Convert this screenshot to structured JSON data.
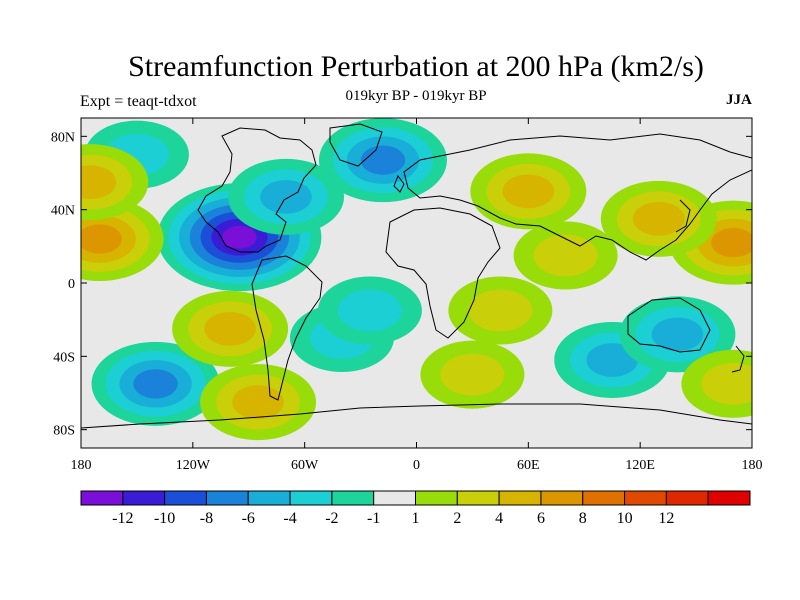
{
  "title": "Streamfunction Perturbation at 200 hPa (km2/s)",
  "subtitle": "019kyr BP - 019kyr BP",
  "expt_label": "Expt = teaqt-tdxot",
  "season": "JJA",
  "lat_ticks": [
    "80N",
    "40N",
    "0",
    "40S",
    "80S"
  ],
  "lon_ticks": [
    "180",
    "120W",
    "60W",
    "0",
    "60E",
    "120E",
    "180"
  ],
  "colorbar": {
    "colors": [
      "#7a10d8",
      "#3a1bd6",
      "#1c4fd8",
      "#1a82d8",
      "#19aed8",
      "#1ccfd4",
      "#1dd49a",
      "#e8e8e8",
      "#98dc0a",
      "#c9cf08",
      "#d6b400",
      "#dc9600",
      "#e07000",
      "#e04a00",
      "#e02800",
      "#e00000"
    ],
    "labels": [
      "-12",
      "-10",
      "-8",
      "-6",
      "-4",
      "-2",
      "-1",
      "1",
      "2",
      "4",
      "6",
      "8",
      "10",
      "12"
    ]
  },
  "chart_data": {
    "type": "heatmap",
    "title": "Streamfunction Perturbation at 200 hPa (km2/s)",
    "subtitle": "019kyr BP - 019kyr BP",
    "projection": "cylindrical equidistant",
    "xlim": [
      -180,
      180
    ],
    "ylim": [
      -90,
      90
    ],
    "contour_levels": [
      -12,
      -10,
      -8,
      -6,
      -4,
      -2,
      -1,
      1,
      2,
      4,
      6,
      8,
      10,
      12
    ],
    "features": [
      {
        "lon": -95,
        "lat": 25,
        "value": -12
      },
      {
        "lon": -70,
        "lat": 47,
        "value": -4
      },
      {
        "lon": -18,
        "lat": 67,
        "value": -6
      },
      {
        "lon": -150,
        "lat": 70,
        "value": -2
      },
      {
        "lon": -140,
        "lat": -55,
        "value": -6
      },
      {
        "lon": -40,
        "lat": -30,
        "value": -2
      },
      {
        "lon": 105,
        "lat": -42,
        "value": -4
      },
      {
        "lon": 140,
        "lat": -28,
        "value": -4
      },
      {
        "lon": -25,
        "lat": -15,
        "value": -2
      },
      {
        "lon": -170,
        "lat": 24,
        "value": 6
      },
      {
        "lon": 170,
        "lat": 22,
        "value": 6
      },
      {
        "lon": 130,
        "lat": 35,
        "value": 4
      },
      {
        "lon": 60,
        "lat": 50,
        "value": 4
      },
      {
        "lon": -85,
        "lat": -65,
        "value": 4
      },
      {
        "lon": -100,
        "lat": -25,
        "value": 4
      },
      {
        "lon": -175,
        "lat": 55,
        "value": 4
      },
      {
        "lon": 30,
        "lat": -50,
        "value": 2
      },
      {
        "lon": 170,
        "lat": -55,
        "value": 2
      },
      {
        "lon": 45,
        "lat": -15,
        "value": 2
      },
      {
        "lon": 80,
        "lat": 15,
        "value": 2
      }
    ]
  }
}
